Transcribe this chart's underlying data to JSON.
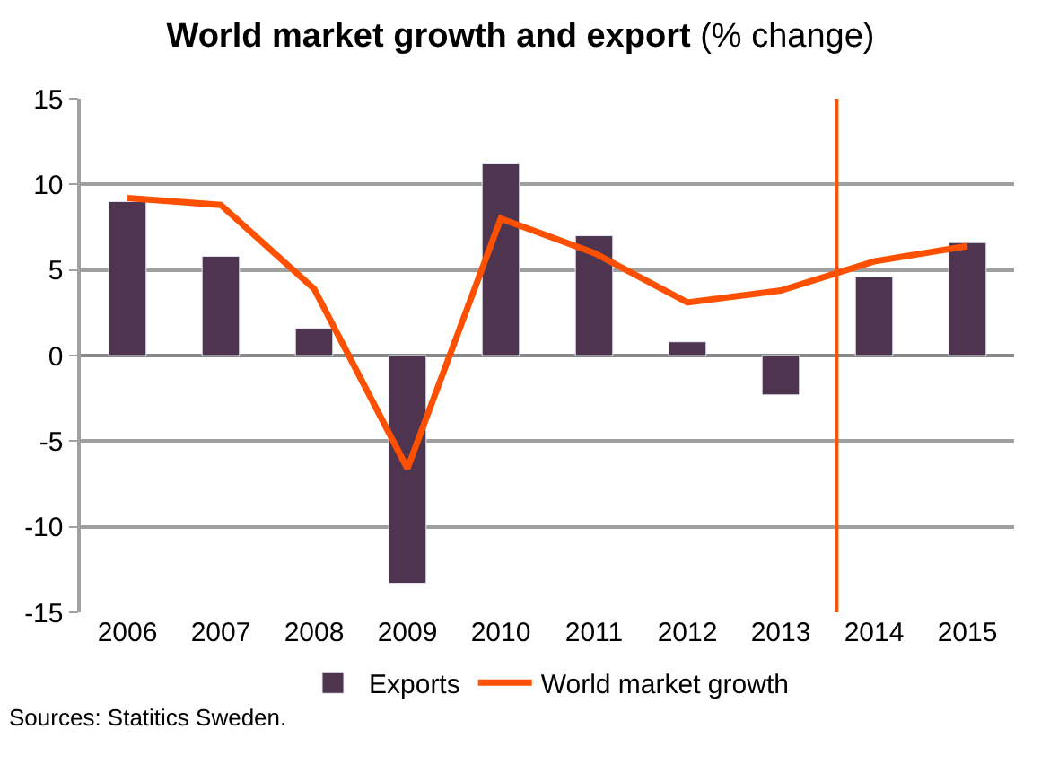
{
  "chart_data": {
    "type": "bar",
    "title": "World market growth and export",
    "subtitle": "(% change)",
    "x": [
      2006,
      2007,
      2008,
      2009,
      2010,
      2011,
      2012,
      2013,
      2014,
      2015
    ],
    "xlim": [
      2005.5,
      2015.5
    ],
    "xticks": [
      2006,
      2007,
      2008,
      2009,
      2010,
      2011,
      2012,
      2013,
      2014,
      2015
    ],
    "ylim": [
      -15,
      15
    ],
    "yticks": [
      -15,
      -10,
      -5,
      0,
      5,
      10,
      15
    ],
    "series": [
      {
        "name": "Exports",
        "color": "#4f3450",
        "values": [
          9.0,
          5.8,
          1.6,
          -13.3,
          11.2,
          7.0,
          0.8,
          -2.3,
          4.6,
          6.6
        ]
      },
      {
        "name": "World market growth",
        "type": "line",
        "color": "#ff5000",
        "values": [
          9.2,
          8.8,
          3.9,
          -6.6,
          8.0,
          6.0,
          3.1,
          3.8,
          5.5,
          6.4
        ]
      }
    ],
    "ref_lines": [
      {
        "axis": "x",
        "value": 2013.6,
        "color": "#ff5000"
      }
    ],
    "grid": "y",
    "legend": "bottom",
    "marker": "none",
    "line_style": "solid",
    "annotations": [
      "Sources: Statitics Sweden."
    ]
  }
}
